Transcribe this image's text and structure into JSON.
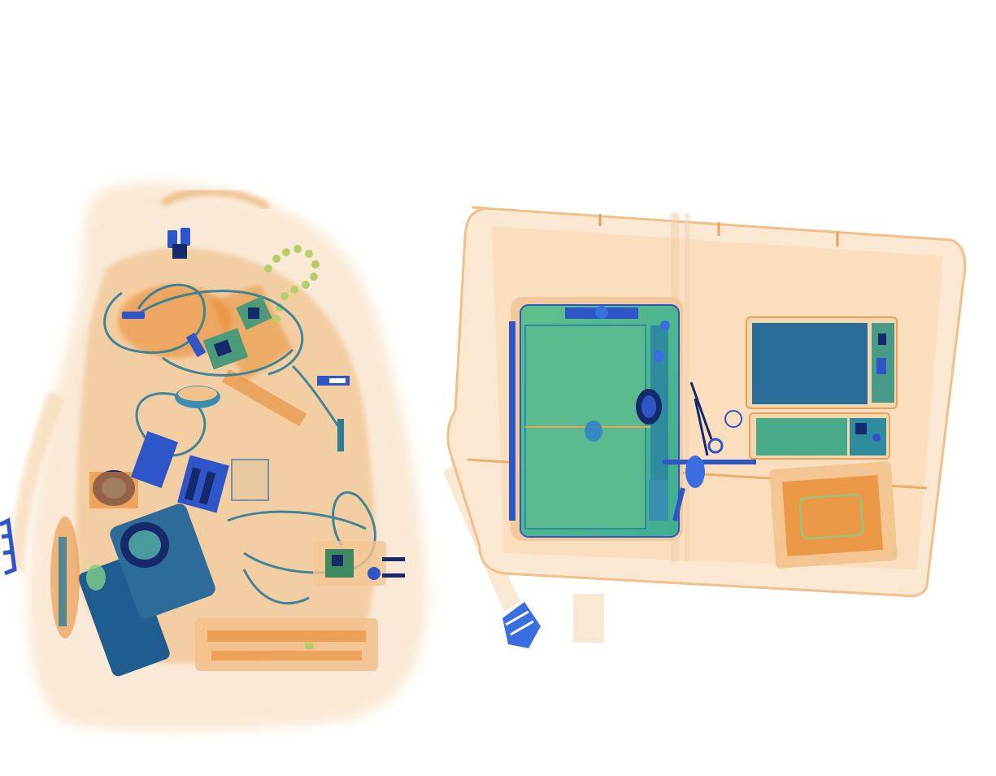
{
  "image": {
    "kind": "x-ray baggage scan",
    "colors": {
      "background": "#ffffff",
      "organic_light": "#f7e3c8",
      "organic_mid": "#f2b877",
      "organic_dense": "#e8892e",
      "mixed_green": "#7fcf8a",
      "inorganic_teal": "#2e8c9e",
      "metal_blue": "#2f56c9",
      "metal_dark": "#142a6b"
    }
  }
}
